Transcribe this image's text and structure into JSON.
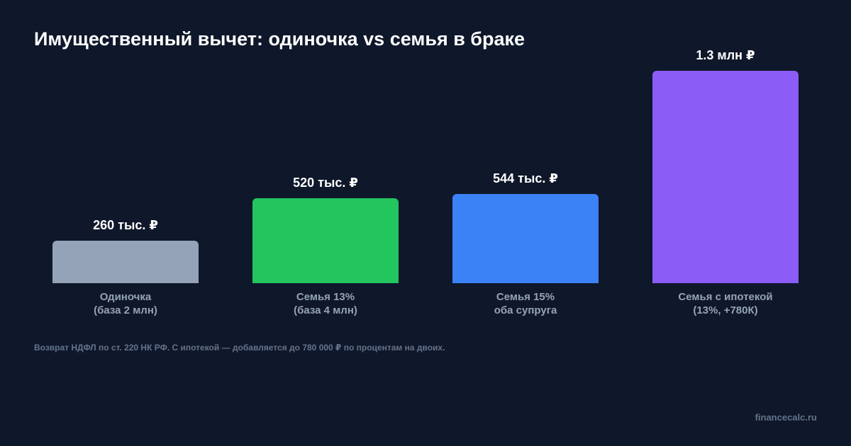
{
  "chart_data": {
    "type": "bar",
    "title": "Имущественный вычет: одиночка vs семья в браке",
    "categories": [
      "Одиночка\n(база 2 млн)",
      "Семья 13%\n(база 4 млн)",
      "Семья 15%\nоба супруга",
      "Семья с ипотекой\n(13%, +780К)"
    ],
    "values": [
      260000,
      520000,
      544000,
      1300000
    ],
    "value_labels": [
      "260 тыс. ₽",
      "520 тыс. ₽",
      "544 тыс. ₽",
      "1.3 млн ₽"
    ],
    "colors": [
      "#94a3b8",
      "#22c55e",
      "#3b82f6",
      "#8b5cf6"
    ],
    "ylim": [
      0,
      1300000
    ],
    "footnote": "Возврат НДФЛ по ст. 220 НК РФ. С ипотекой — добавляется до 780 000 ₽ по процентам на двоих.",
    "watermark": "financecalc.ru"
  }
}
